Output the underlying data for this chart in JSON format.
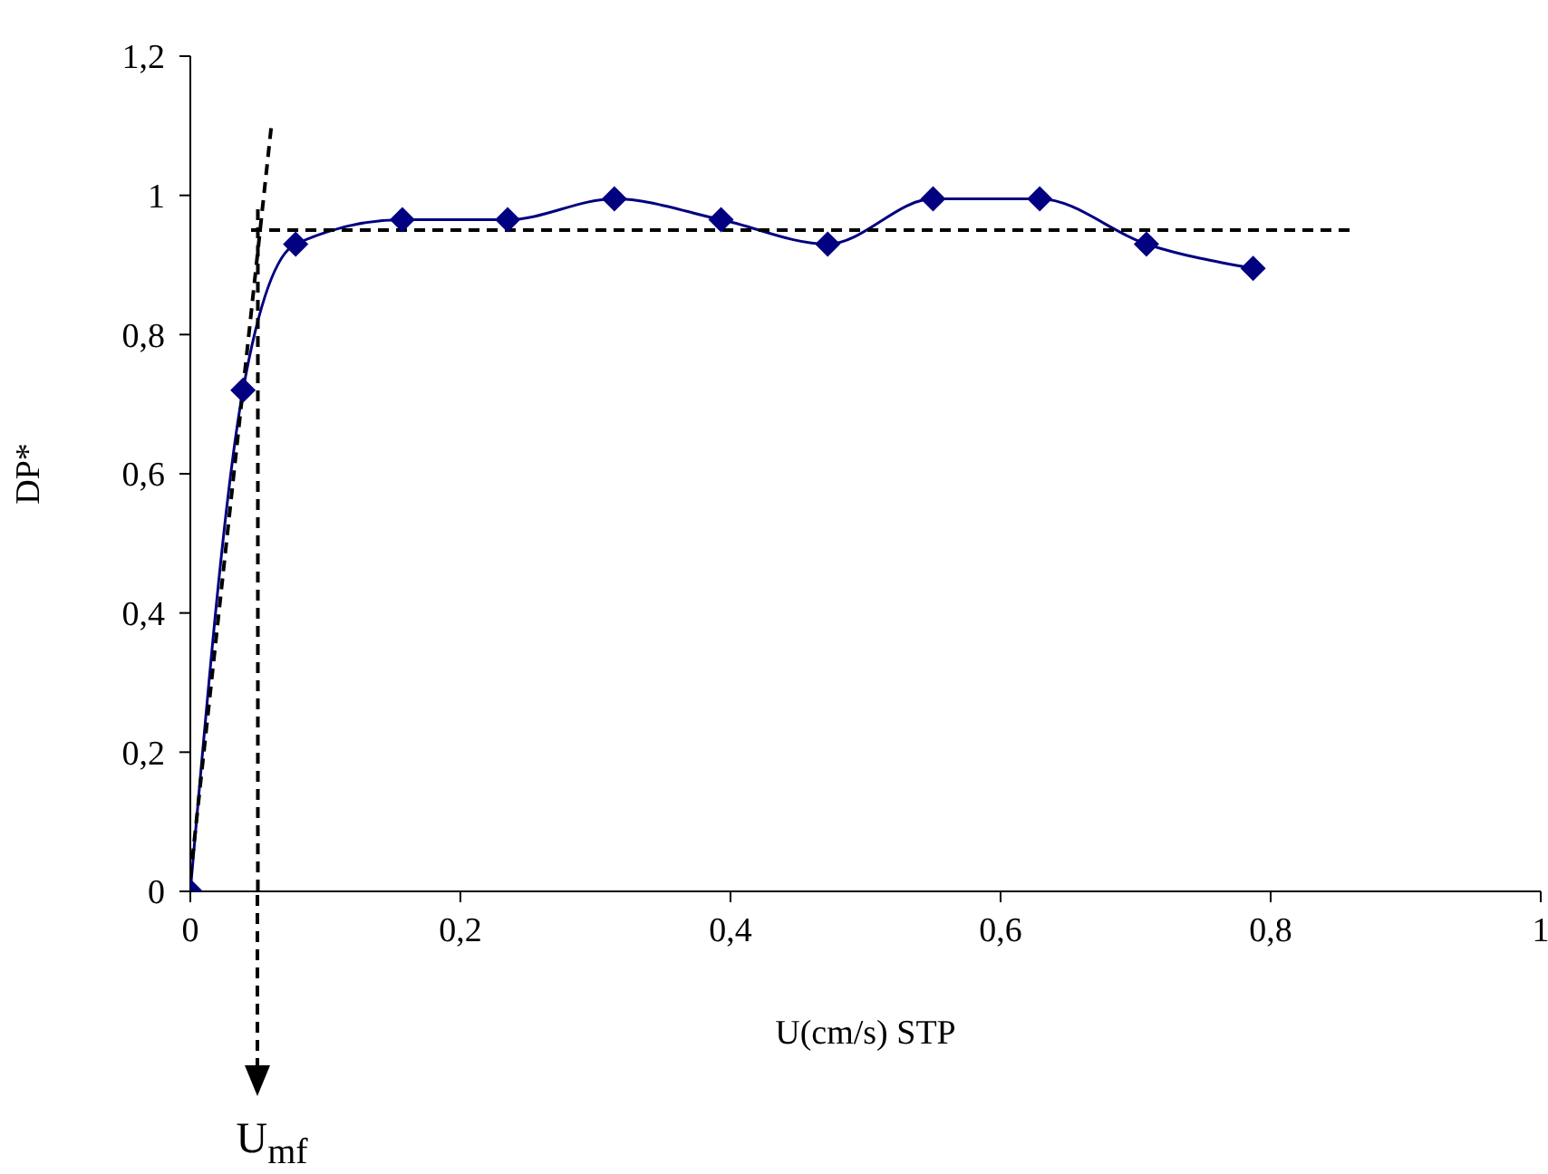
{
  "chart_data": {
    "type": "line",
    "xlabel": "U(cm/s) STP",
    "ylabel": "DP*",
    "annotations": [
      "U$_{mf}$"
    ],
    "xlim": [
      0,
      1
    ],
    "xticks": [
      {
        "value": 0,
        "label": "0"
      },
      {
        "value": 0.2,
        "label": "0,2"
      },
      {
        "value": 0.4,
        "label": "0,4"
      },
      {
        "value": 0.6,
        "label": "0,6"
      },
      {
        "value": 0.8,
        "label": "0,8"
      },
      {
        "value": 1,
        "label": "1"
      }
    ],
    "ylim": [
      0,
      1.2
    ],
    "yticks": [
      {
        "value": 0,
        "label": "0"
      },
      {
        "value": 0.2,
        "label": "0,2"
      },
      {
        "value": 0.4,
        "label": "0,4"
      },
      {
        "value": 0.6,
        "label": "0,6"
      },
      {
        "value": 0.8,
        "label": "0,8"
      },
      {
        "value": 1,
        "label": "1"
      },
      {
        "value": 1.2,
        "label": "1,2"
      }
    ],
    "grid": false,
    "legend": false,
    "series": [
      {
        "color": "#000080",
        "marker": "diamond",
        "line_style": "solid",
        "x": [
          0,
          0.039,
          0.078,
          0.157,
          0.235,
          0.314,
          0.393,
          0.472,
          0.55,
          0.629,
          0.708,
          0.787
        ],
        "values": [
          0,
          0.72,
          0.93,
          0.965,
          0.965,
          0.995,
          0.965,
          0.93,
          0.995,
          0.995,
          0.93,
          0.895
        ]
      },
      {
        "color": "#000000",
        "marker": "none",
        "line_style": "dashed",
        "x": [
          0,
          0.06
        ],
        "values": [
          0.02,
          1.1
        ]
      },
      {
        "color": "#000000",
        "marker": "none",
        "line_style": "dashed",
        "x": [
          0.045,
          0.86
        ],
        "values": [
          0.95,
          0.95
        ]
      },
      {
        "color": "#000000",
        "marker": "none",
        "line_style": "dashed",
        "x": [
          0.05,
          0.05
        ],
        "values": [
          0.98,
          0
        ]
      }
    ]
  }
}
